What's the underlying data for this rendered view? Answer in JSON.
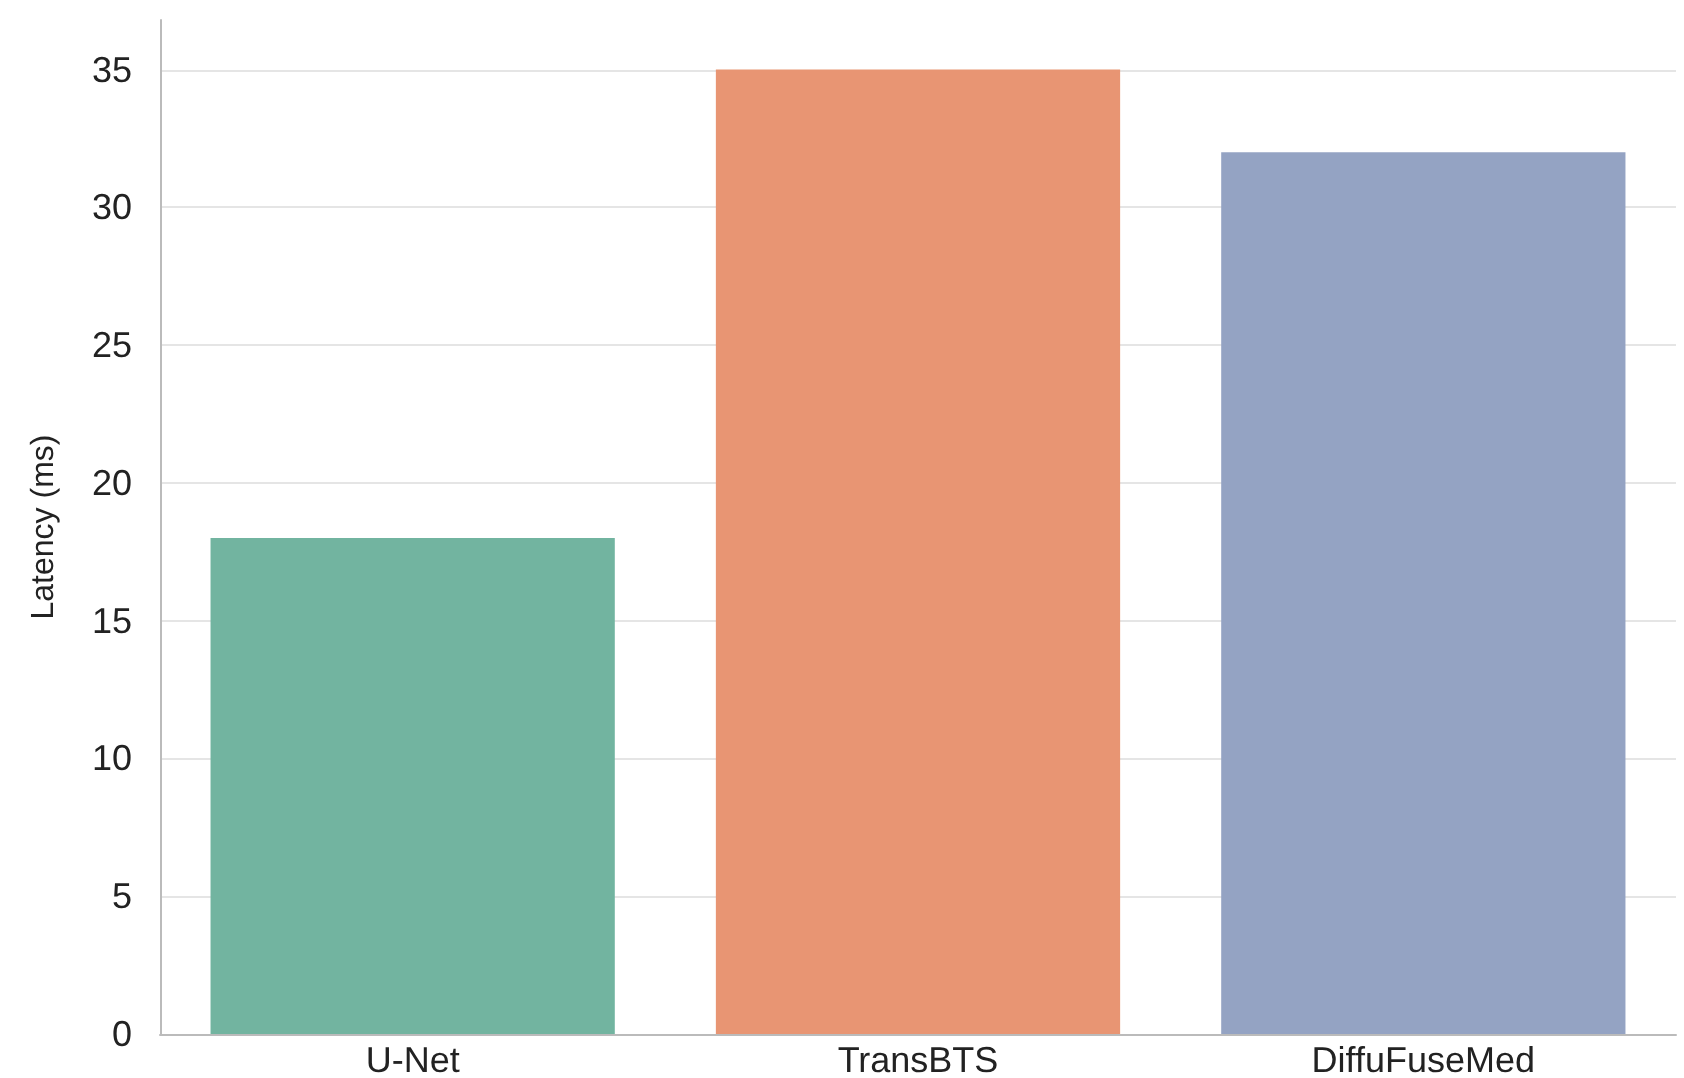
{
  "chart_data": {
    "type": "bar",
    "ylabel": "Latency (ms)",
    "categories": [
      "U-Net",
      "TransBTS",
      "DiffuFuseMed"
    ],
    "values": [
      18,
      35,
      32
    ],
    "colors": [
      "#72b4a0",
      "#e89573",
      "#94a3c3"
    ],
    "ylim": [
      0,
      36.8
    ],
    "yticks": [
      0,
      5,
      10,
      15,
      20,
      25,
      30,
      35
    ],
    "grid": "y"
  }
}
